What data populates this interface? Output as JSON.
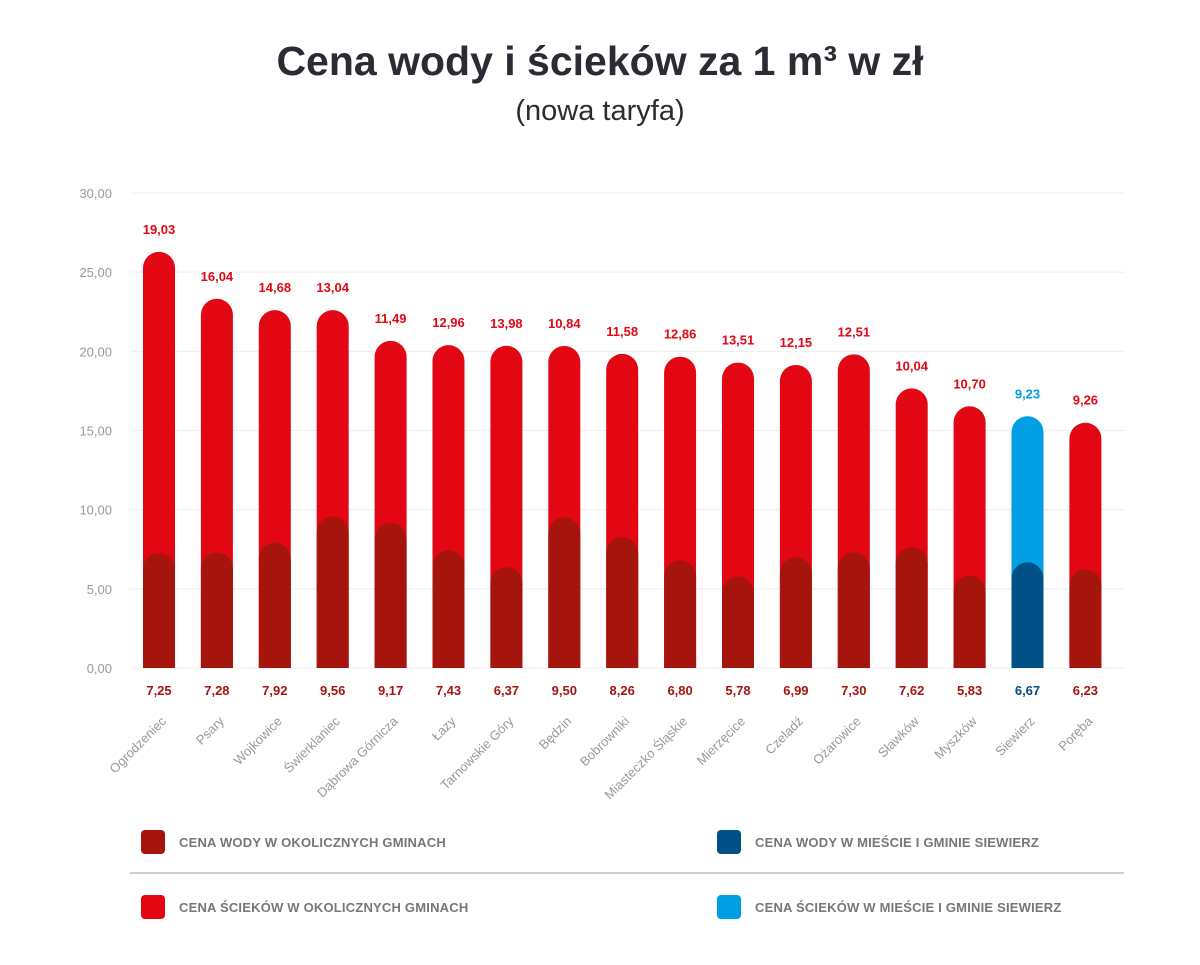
{
  "title": "Cena wody i ścieków za 1 m³ w zł",
  "subtitle": "(nowa taryfa)",
  "colors": {
    "water_other": "#a6150d",
    "sewage_other": "#e30613",
    "water_siewierz": "#004f86",
    "sewage_siewierz": "#009fe3",
    "axis_text": "#999999",
    "grid": "#eeeeee"
  },
  "chart_data": {
    "type": "bar",
    "stacked": true,
    "categories": [
      "Ogrodzeniec",
      "Psary",
      "Wojkowice",
      "Świerklaniec",
      "Dąbrowa Górnicza",
      "Łazy",
      "Tarnowskie Góry",
      "Będzin",
      "Bobrowniki",
      "Miasteczko Śląskie",
      "Mierzęcice",
      "Czeladź",
      "Ożarowice",
      "Sławków",
      "Myszków",
      "Siewierz",
      "Poręba"
    ],
    "series": [
      {
        "name": "CENA WODY",
        "values": [
          7.25,
          7.28,
          7.92,
          9.56,
          9.17,
          7.43,
          6.37,
          9.5,
          8.26,
          6.8,
          5.78,
          6.99,
          7.3,
          7.62,
          5.83,
          6.67,
          6.23
        ],
        "labels": [
          "7,25",
          "7,28",
          "7,92",
          "9,56",
          "9,17",
          "7,43",
          "6,37",
          "9,50",
          "8,26",
          "6,80",
          "5,78",
          "6,99",
          "7,30",
          "7,62",
          "5,83",
          "6,67",
          "6,23"
        ]
      },
      {
        "name": "CENA ŚCIEKÓW",
        "values": [
          19.03,
          16.04,
          14.68,
          13.04,
          11.49,
          12.96,
          13.98,
          10.84,
          11.58,
          12.86,
          13.51,
          12.15,
          12.51,
          10.04,
          10.7,
          9.23,
          9.26
        ],
        "labels": [
          "19,03",
          "16,04",
          "14,68",
          "13,04",
          "11,49",
          "12,96",
          "13,98",
          "10,84",
          "11,58",
          "12,86",
          "13,51",
          "12,15",
          "12,51",
          "10,04",
          "10,70",
          "9,23",
          "9,26"
        ]
      }
    ],
    "highlight_category": "Siewierz",
    "yticks": [
      0,
      5,
      10,
      15,
      20,
      25,
      30
    ],
    "ytick_labels": [
      "0,00",
      "5,00",
      "10,00",
      "15,00",
      "20,00",
      "25,00",
      "30,00"
    ],
    "ylim": [
      0,
      30
    ],
    "grid": true
  },
  "legend": {
    "water_other": "CENA WODY W OKOLICZNYCH GMINACH",
    "water_siewierz": "CENA WODY W MIEŚCIE I GMINIE SIEWIERZ",
    "sewage_other": "CENA ŚCIEKÓW W OKOLICZNYCH GMINACH",
    "sewage_siewierz": "CENA ŚCIEKÓW W MIEŚCIE I GMINIE SIEWIERZ"
  }
}
